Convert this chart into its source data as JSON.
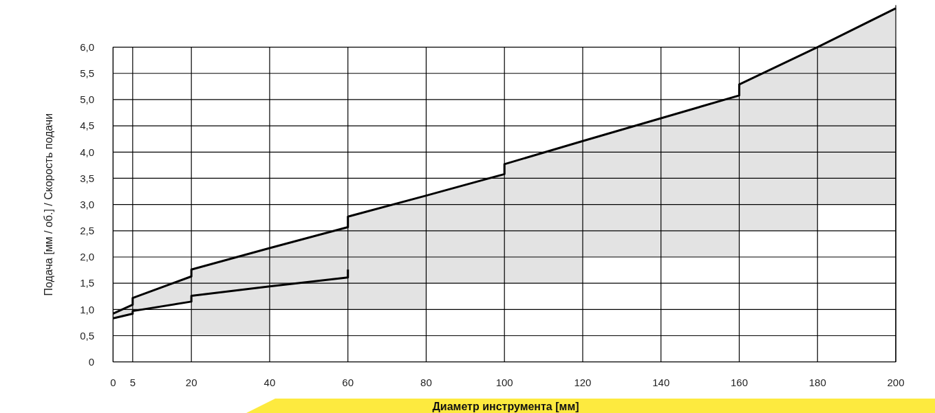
{
  "chart_data": {
    "type": "line",
    "xlabel": "Диаметр инструмента [мм]",
    "ylabel": "Подача [мм / об.] / Скорость подачи",
    "xlim": [
      0,
      200
    ],
    "xticks": [
      0,
      5,
      20,
      40,
      60,
      80,
      100,
      120,
      140,
      160,
      180,
      200
    ],
    "ylim": [
      0,
      6.8
    ],
    "yticks": [
      {
        "value": 0,
        "label": "0"
      },
      {
        "value": 0.5,
        "label": "0,5"
      },
      {
        "value": 1,
        "label": "1,0"
      },
      {
        "value": 1.5,
        "label": "1,5"
      },
      {
        "value": 2,
        "label": "2,0"
      },
      {
        "value": 2.5,
        "label": "2,5"
      },
      {
        "value": 3,
        "label": "3,0"
      },
      {
        "value": 3.5,
        "label": "3,5"
      },
      {
        "value": 4,
        "label": "4,0"
      },
      {
        "value": 4.5,
        "label": "4,5"
      },
      {
        "value": 5,
        "label": "5,0"
      },
      {
        "value": 5.5,
        "label": "5,5"
      },
      {
        "value": 6,
        "label": "6,0"
      }
    ],
    "grid": true,
    "line_style": "solid",
    "marker": "none",
    "series": [
      {
        "color": "#000000",
        "x": [
          0,
          5,
          5,
          20,
          20,
          40,
          40,
          60,
          60,
          80,
          80,
          100,
          100,
          120,
          120,
          160,
          160,
          180,
          180,
          200
        ],
        "values": [
          0.92,
          1.09,
          1.22,
          1.63,
          1.76,
          2.17,
          2.17,
          2.57,
          2.77,
          3.17,
          3.17,
          3.58,
          3.77,
          4.21,
          4.21,
          5.08,
          5.29,
          6.0,
          6.0,
          6.74
        ],
        "lower": [
          0.83,
          0.92,
          0.97,
          1.15,
          0.5,
          0.5,
          1.0,
          1.0,
          1.0,
          1.0,
          1.5,
          1.5,
          1.5,
          1.5,
          2.0,
          2.0,
          2.5,
          2.5,
          3.0,
          3.0
        ],
        "upper": [
          0.92,
          1.09,
          1.22,
          1.63,
          1.76,
          2.17,
          2.17,
          2.57,
          2.77,
          3.17,
          3.17,
          3.58,
          3.77,
          4.21,
          4.21,
          5.08,
          5.29,
          6.0,
          6.0,
          6.74
        ]
      },
      {
        "color": "#000000",
        "x": [
          0,
          5,
          5,
          20,
          20,
          40,
          60,
          60
        ],
        "values": [
          0.83,
          0.92,
          0.97,
          1.15,
          1.26,
          1.44,
          1.61,
          1.76
        ]
      }
    ]
  }
}
